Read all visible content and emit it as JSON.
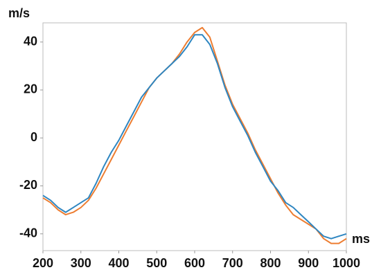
{
  "chart_data": {
    "type": "line",
    "x_label": "ms",
    "y_label": "m/s",
    "x": [
      200,
      220,
      240,
      260,
      280,
      300,
      320,
      340,
      360,
      380,
      400,
      420,
      440,
      460,
      480,
      500,
      520,
      540,
      560,
      580,
      600,
      620,
      640,
      660,
      680,
      700,
      720,
      740,
      760,
      780,
      800,
      820,
      840,
      860,
      880,
      900,
      920,
      940,
      960,
      980,
      1000
    ],
    "series": [
      {
        "color": "#2e86c1",
        "values": [
          -24,
          -26,
          -29,
          -31,
          -29,
          -27,
          -25,
          -19,
          -12,
          -6,
          -1,
          5,
          11,
          17,
          21,
          25,
          28,
          31,
          34,
          38,
          43,
          43,
          39,
          31,
          21,
          13,
          7,
          1,
          -6,
          -12,
          -18,
          -22,
          -27,
          -29,
          -32,
          -35,
          -38,
          -41,
          -42,
          -41,
          -40
        ]
      },
      {
        "color": "#ed7d31",
        "values": [
          -25,
          -27,
          -30,
          -32,
          -31,
          -29,
          -26,
          -21,
          -15,
          -9,
          -3,
          3,
          9,
          15,
          21,
          25,
          28,
          31,
          35,
          40,
          44,
          46,
          42,
          32,
          22,
          14,
          8,
          2,
          -5,
          -11,
          -17,
          -23,
          -28,
          -32,
          -34,
          -36,
          -38,
          -42,
          -44,
          -44,
          -42
        ]
      }
    ],
    "xlim": [
      200,
      1000
    ],
    "ylim": [
      -47,
      48
    ],
    "xticks": [
      200,
      300,
      400,
      500,
      600,
      700,
      800,
      900,
      1000
    ],
    "yticks": [
      -40,
      -20,
      0,
      20,
      40
    ],
    "grid": false
  }
}
